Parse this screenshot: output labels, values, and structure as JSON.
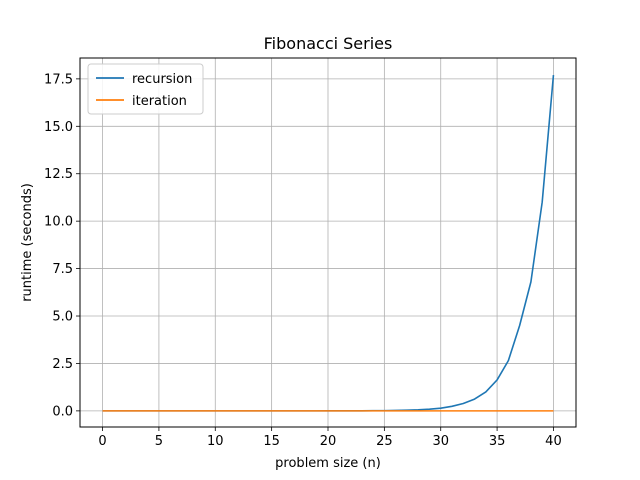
{
  "chart_data": {
    "type": "line",
    "title": "Fibonacci Series",
    "xlabel": "problem size (n)",
    "ylabel": "runtime (seconds)",
    "xlim": [
      -2,
      42
    ],
    "ylim": [
      -0.85,
      18.6
    ],
    "xticks": [
      0,
      5,
      10,
      15,
      20,
      25,
      30,
      35,
      40
    ],
    "xtick_labels": [
      "0",
      "5",
      "10",
      "15",
      "20",
      "25",
      "30",
      "35",
      "40"
    ],
    "yticks": [
      0,
      2.5,
      5,
      7.5,
      10,
      12.5,
      15,
      17.5
    ],
    "ytick_labels": [
      "0.0",
      "2.5",
      "5.0",
      "7.5",
      "10.0",
      "12.5",
      "15.0",
      "17.5"
    ],
    "grid": true,
    "legend_position": "top-left",
    "series": [
      {
        "name": "recursion",
        "color": "#1f77b4",
        "x": [
          0,
          1,
          2,
          3,
          4,
          5,
          6,
          7,
          8,
          9,
          10,
          11,
          12,
          13,
          14,
          15,
          16,
          17,
          18,
          19,
          20,
          21,
          22,
          23,
          24,
          25,
          26,
          27,
          28,
          29,
          30,
          31,
          32,
          33,
          34,
          35,
          36,
          37,
          38,
          39,
          40
        ],
        "y": [
          0,
          0,
          0,
          0,
          0,
          0,
          0,
          0,
          0,
          0,
          0,
          0,
          0,
          0,
          0,
          0,
          0,
          0,
          0,
          0,
          0.001,
          0.002,
          0.003,
          0.005,
          0.008,
          0.013,
          0.021,
          0.034,
          0.055,
          0.09,
          0.14,
          0.24,
          0.39,
          0.62,
          1.0,
          1.63,
          2.65,
          4.5,
          6.8,
          11.0,
          17.7
        ]
      },
      {
        "name": "iteration",
        "color": "#ff7f0e",
        "x": [
          0,
          1,
          2,
          3,
          4,
          5,
          6,
          7,
          8,
          9,
          10,
          11,
          12,
          13,
          14,
          15,
          16,
          17,
          18,
          19,
          20,
          21,
          22,
          23,
          24,
          25,
          26,
          27,
          28,
          29,
          30,
          31,
          32,
          33,
          34,
          35,
          36,
          37,
          38,
          39,
          40
        ],
        "y": [
          0,
          0,
          0,
          0,
          0,
          0,
          0,
          0,
          0,
          0,
          0,
          0,
          0,
          0,
          0,
          0,
          0,
          0,
          0,
          0,
          0,
          0,
          0,
          0,
          0,
          0,
          0,
          0,
          0,
          0,
          0,
          0,
          0,
          0,
          0,
          0,
          0,
          0,
          0,
          0,
          0
        ]
      }
    ]
  }
}
